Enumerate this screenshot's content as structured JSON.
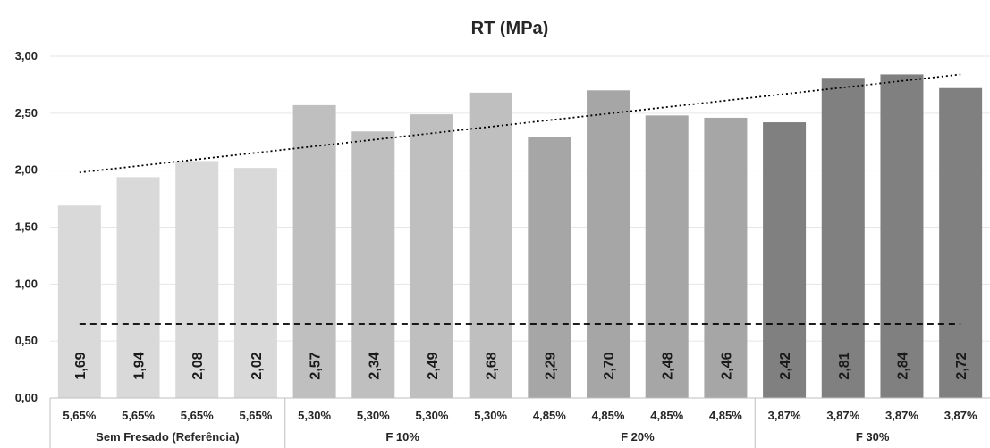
{
  "chart_data": {
    "type": "bar",
    "title": "RT (MPa)",
    "categories": [
      "5,65%",
      "5,65%",
      "5,65%",
      "5,65%",
      "5,30%",
      "5,30%",
      "5,30%",
      "5,30%",
      "4,85%",
      "4,85%",
      "4,85%",
      "4,85%",
      "3,87%",
      "3,87%",
      "3,87%",
      "3,87%"
    ],
    "groups": [
      {
        "label": "Sem Fresado (Referência)",
        "count": 4,
        "color": "#d9d9d9"
      },
      {
        "label": "F 10%",
        "count": 4,
        "color": "#bfbfbf"
      },
      {
        "label": "F 20%",
        "count": 4,
        "color": "#a6a6a6"
      },
      {
        "label": "F 30%",
        "count": 4,
        "color": "#808080"
      }
    ],
    "values": [
      1.69,
      1.94,
      2.08,
      2.02,
      2.57,
      2.34,
      2.49,
      2.68,
      2.29,
      2.7,
      2.48,
      2.46,
      2.42,
      2.81,
      2.84,
      2.72
    ],
    "data_labels": [
      "1,69",
      "1,94",
      "2,08",
      "2,02",
      "2,57",
      "2,34",
      "2,49",
      "2,68",
      "2,29",
      "2,70",
      "2,48",
      "2,46",
      "2,42",
      "2,81",
      "2,84",
      "2,72"
    ],
    "ylim": [
      0,
      3
    ],
    "yticks": [
      0,
      0.5,
      1,
      1.5,
      2,
      2.5,
      3
    ],
    "ytick_labels": [
      "0,00",
      "0,50",
      "1,00",
      "1,50",
      "2,00",
      "2,50",
      "3,00"
    ],
    "reference_line": {
      "value": 0.65,
      "style": "dashed"
    },
    "trendline": {
      "start": 1.98,
      "end": 2.84,
      "style": "dotted"
    },
    "grid": true,
    "legend": "none"
  }
}
